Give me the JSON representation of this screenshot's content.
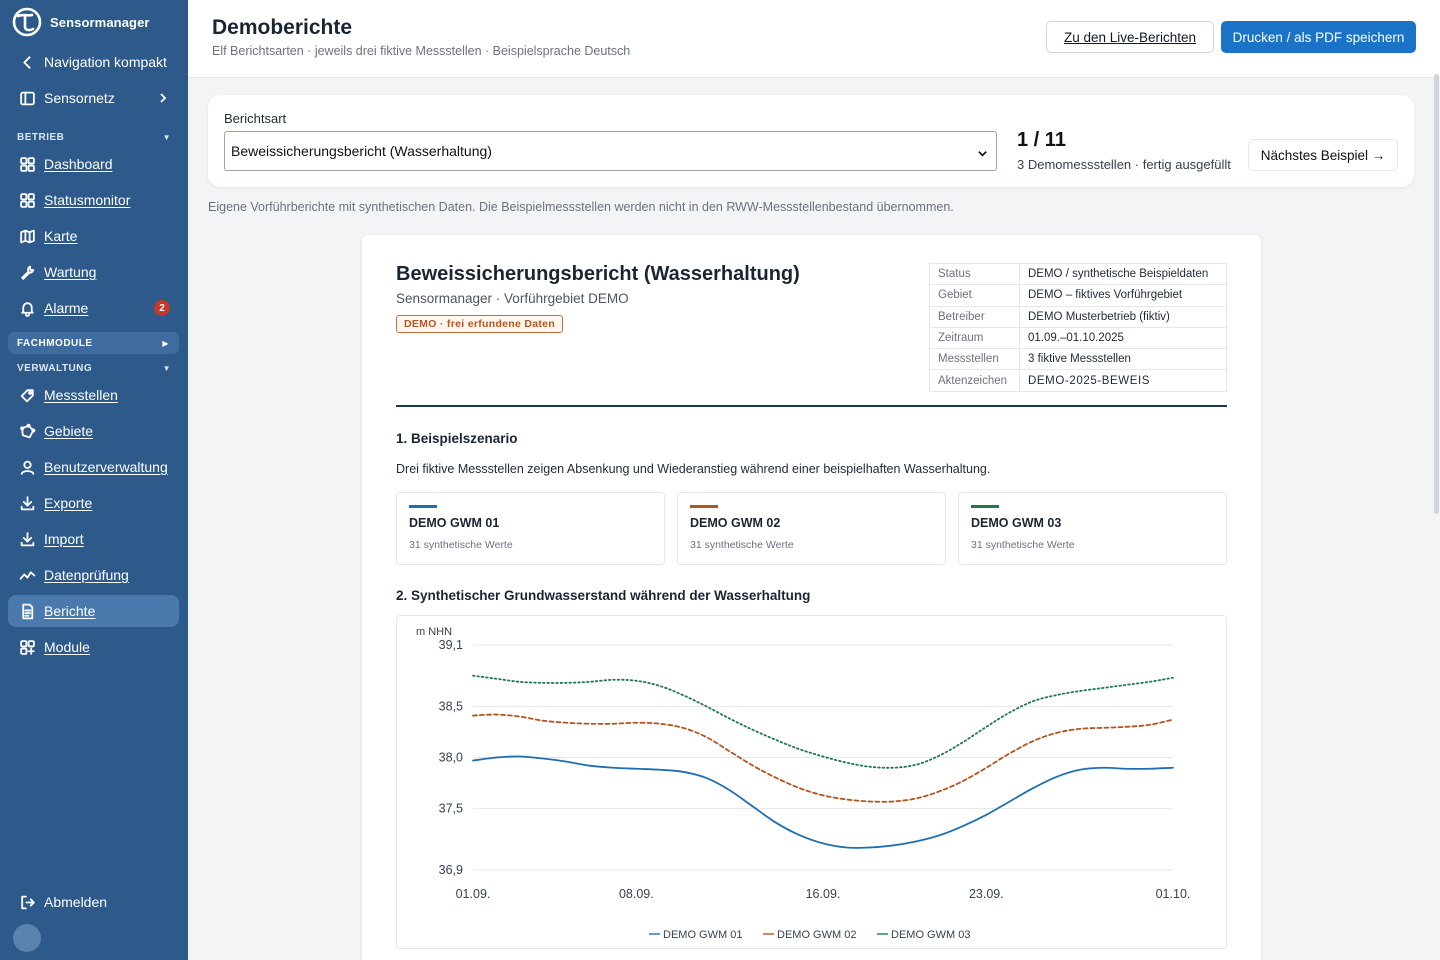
{
  "app": {
    "name": "Sensormanager"
  },
  "sidebar": {
    "compact_label": "Navigation kompakt",
    "sensornetz_label": "Sensornetz",
    "sections": {
      "betrieb": "BETRIEB",
      "fachmodule": "FACHMODULE",
      "verwaltung": "VERWALTUNG"
    },
    "betrieb_items": [
      {
        "label": "Dashboard",
        "icon": "dashboard-icon"
      },
      {
        "label": "Statusmonitor",
        "icon": "grid-icon"
      },
      {
        "label": "Karte",
        "icon": "map-icon"
      },
      {
        "label": "Wartung",
        "icon": "wrench-icon"
      },
      {
        "label": "Alarme",
        "icon": "bell-icon",
        "badge": "2"
      }
    ],
    "verwaltung_items": [
      {
        "label": "Messstellen",
        "icon": "location-tag-icon"
      },
      {
        "label": "Gebiete",
        "icon": "polygon-icon"
      },
      {
        "label": "Benutzerverwaltung",
        "icon": "user-icon"
      },
      {
        "label": "Exporte",
        "icon": "download-icon"
      },
      {
        "label": "Import",
        "icon": "import-icon"
      },
      {
        "label": "Datenprüfung",
        "icon": "activity-icon"
      },
      {
        "label": "Berichte",
        "icon": "document-icon",
        "active": true
      },
      {
        "label": "Module",
        "icon": "modules-icon"
      }
    ],
    "logout_label": "Abmelden",
    "accent": "#2d5a8a",
    "badge_color": "#c0392b"
  },
  "header": {
    "title": "Demoberichte",
    "subtitle": "Elf Berichtsarten · jeweils drei fiktive Messstellen · Beispielsprache Deutsch",
    "live_button": "Zu den Live-Berichten",
    "print_button": "Drucken / als PDF speichern",
    "print_color": "#1a73c6"
  },
  "selector": {
    "label": "Berichtsart",
    "value": "Beweissicherungsbericht (Wasserhaltung)",
    "counter": "1 / 11",
    "counter_sub": "3 Demomessstellen · fertig ausgefüllt",
    "next_button": "Nächstes Beispiel →"
  },
  "note": "Eigene Vorführberichte mit synthetischen Daten. Die Beispielmessstellen werden nicht in den RWW-Messstellenbestand übernommen.",
  "report": {
    "title": "Beweissicherungsbericht (Wasserhaltung)",
    "subtitle": "Sensormanager · Vorführgebiet DEMO",
    "demo_tag": "DEMO · frei erfundene Daten",
    "meta": [
      {
        "k": "Status",
        "v": "DEMO / synthetische Beispieldaten"
      },
      {
        "k": "Gebiet",
        "v": "DEMO – fiktives Vorführgebiet"
      },
      {
        "k": "Betreiber",
        "v": "DEMO Musterbetrieb (fiktiv)"
      },
      {
        "k": "Zeitraum",
        "v": "01.09.–01.10.2025"
      },
      {
        "k": "Messstellen",
        "v": "3 fiktive Messstellen"
      },
      {
        "k": "Aktenzeichen",
        "v": "DEMO-2025-BEWEIS"
      }
    ],
    "section1_title": "1. Beispielszenario",
    "section1_text": "Drei fiktive Messstellen zeigen Absenkung und Wiederanstieg während einer beispielhaften Wasserhaltung.",
    "stations": [
      {
        "name": "DEMO GWM 01",
        "count": "31 synthetische Werte",
        "color": "#1f6fb0"
      },
      {
        "name": "DEMO GWM 02",
        "count": "31 synthetische Werte",
        "color": "#b4541f"
      },
      {
        "name": "DEMO GWM 03",
        "count": "31 synthetische Werte",
        "color": "#1e7a4e"
      }
    ],
    "section2_title": "2. Synthetischer Grundwasserstand während der Wasserhaltung"
  },
  "chart_data": {
    "type": "line",
    "ylabel": "m NHN",
    "ylim": [
      36.9,
      39.1
    ],
    "yticks": [
      "39,1",
      "38,5",
      "38,0",
      "37,5",
      "36,9"
    ],
    "ytick_values": [
      39.1,
      38.5,
      38.0,
      37.5,
      36.9
    ],
    "xticks": [
      "01.09.",
      "08.09.",
      "16.09.",
      "23.09.",
      "01.10."
    ],
    "xtick_days": [
      0,
      7,
      15,
      22,
      30
    ],
    "grid": true,
    "legend_position": "bottom",
    "series": [
      {
        "name": "DEMO GWM 01",
        "color": "#1f6fb0",
        "style": "solid",
        "values": [
          37.97,
          38.0,
          38.01,
          37.99,
          37.96,
          37.92,
          37.9,
          37.89,
          37.88,
          37.86,
          37.8,
          37.68,
          37.52,
          37.36,
          37.24,
          37.16,
          37.12,
          37.12,
          37.14,
          37.18,
          37.24,
          37.33,
          37.44,
          37.57,
          37.7,
          37.81,
          37.88,
          37.9,
          37.89,
          37.89,
          37.9
        ]
      },
      {
        "name": "DEMO GWM 02",
        "color": "#b4541f",
        "style": "dashed",
        "values": [
          38.41,
          38.42,
          38.4,
          38.36,
          38.34,
          38.33,
          38.33,
          38.34,
          38.33,
          38.29,
          38.2,
          38.06,
          37.92,
          37.8,
          37.7,
          37.63,
          37.59,
          37.57,
          37.57,
          37.6,
          37.67,
          37.77,
          37.9,
          38.04,
          38.16,
          38.24,
          38.28,
          38.29,
          38.3,
          38.32,
          38.37
        ]
      },
      {
        "name": "DEMO GWM 03",
        "color": "#1e7a4e",
        "style": "dotted",
        "values": [
          38.8,
          38.77,
          38.74,
          38.73,
          38.73,
          38.74,
          38.76,
          38.75,
          38.7,
          38.61,
          38.5,
          38.38,
          38.27,
          38.17,
          38.08,
          38.01,
          37.95,
          37.91,
          37.9,
          37.93,
          38.02,
          38.15,
          38.3,
          38.44,
          38.55,
          38.61,
          38.65,
          38.68,
          38.71,
          38.74,
          38.78
        ]
      }
    ]
  }
}
